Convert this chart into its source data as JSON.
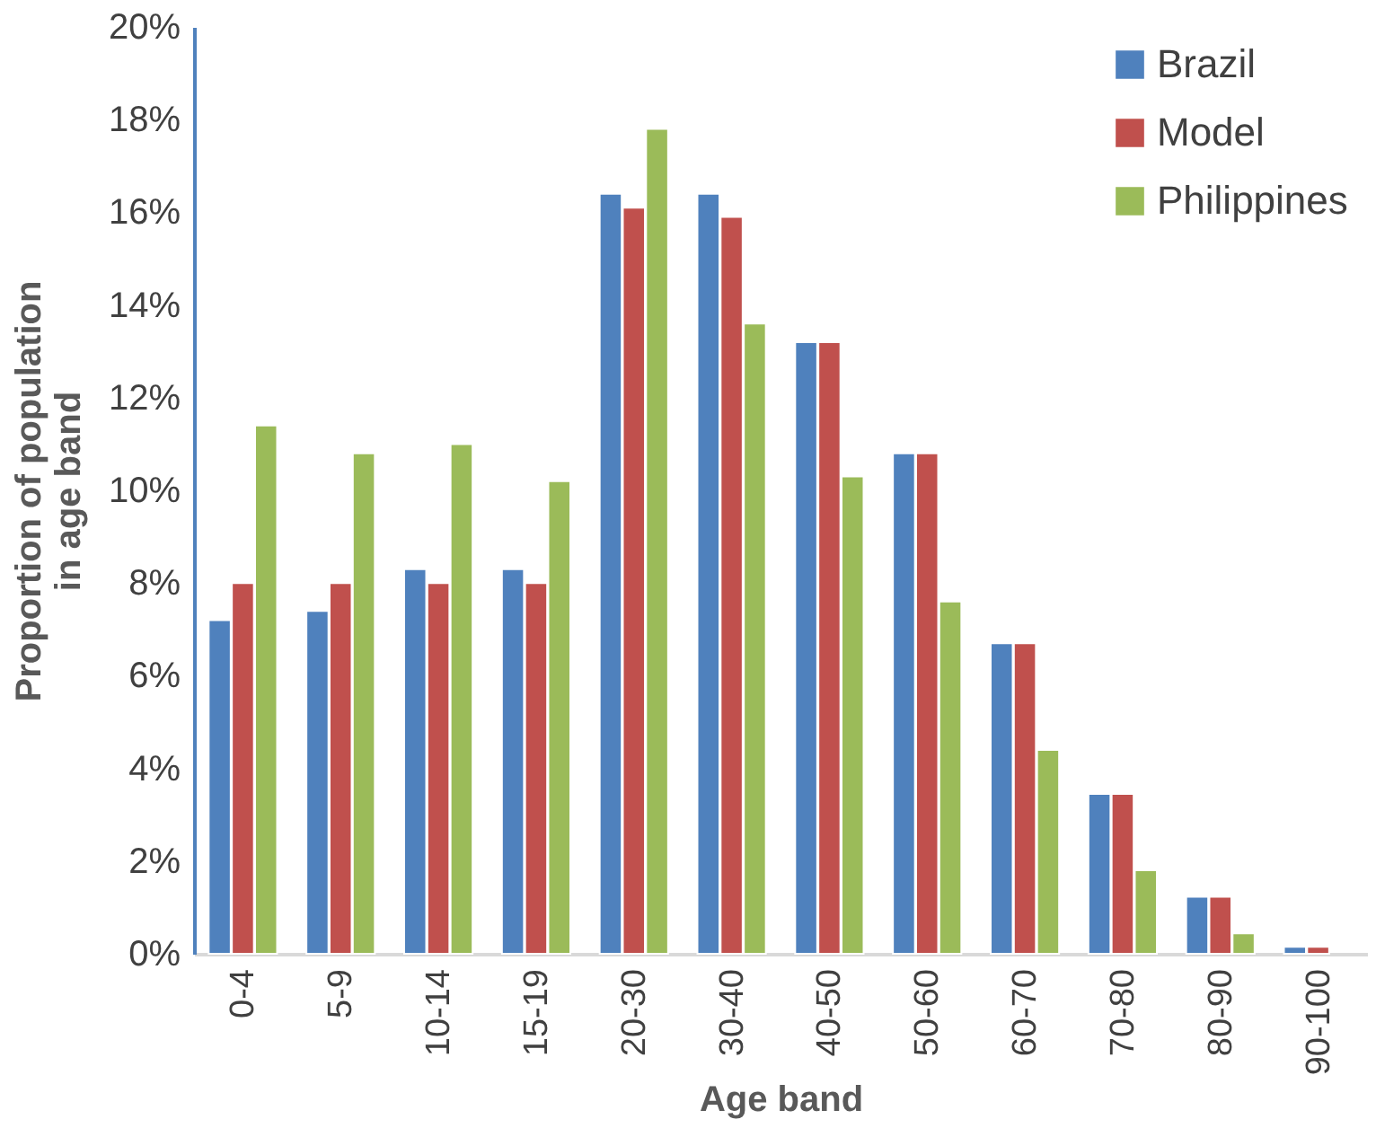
{
  "chart_data": {
    "type": "bar",
    "xlabel": "Age band",
    "ylabel": "Proportion of population in age band",
    "categories": [
      "0-4",
      "5-9",
      "10-14",
      "15-19",
      "20-30",
      "30-40",
      "40-50",
      "50-60",
      "60-70",
      "70-80",
      "80-90",
      "90-100"
    ],
    "series": [
      {
        "name": "Brazil",
        "color": "#4f81bd",
        "values": [
          7.2,
          7.4,
          8.3,
          8.3,
          16.4,
          16.4,
          13.2,
          10.8,
          6.7,
          3.45,
          1.23,
          0.15
        ]
      },
      {
        "name": "Model",
        "color": "#c0504d",
        "values": [
          8.0,
          8.0,
          8.0,
          8.0,
          16.1,
          15.9,
          13.2,
          10.8,
          6.7,
          3.45,
          1.23,
          0.15
        ]
      },
      {
        "name": "Philippines",
        "color": "#9bbb59",
        "values": [
          11.4,
          10.8,
          11.0,
          10.2,
          17.8,
          13.6,
          10.3,
          7.6,
          4.4,
          1.8,
          0.44,
          null
        ]
      }
    ],
    "ylim": [
      0,
      20
    ],
    "yticks": [
      {
        "value": 0,
        "label": "0%"
      },
      {
        "value": 2,
        "label": "2%"
      },
      {
        "value": 4,
        "label": "4%"
      },
      {
        "value": 6,
        "label": "6%"
      },
      {
        "value": 8,
        "label": "8%"
      },
      {
        "value": 10,
        "label": "10%"
      },
      {
        "value": 12,
        "label": "12%"
      },
      {
        "value": 14,
        "label": "14%"
      },
      {
        "value": 16,
        "label": "16%"
      },
      {
        "value": 18,
        "label": "18%"
      },
      {
        "value": 20,
        "label": "20%"
      }
    ],
    "grid": false,
    "legend": "top right"
  }
}
